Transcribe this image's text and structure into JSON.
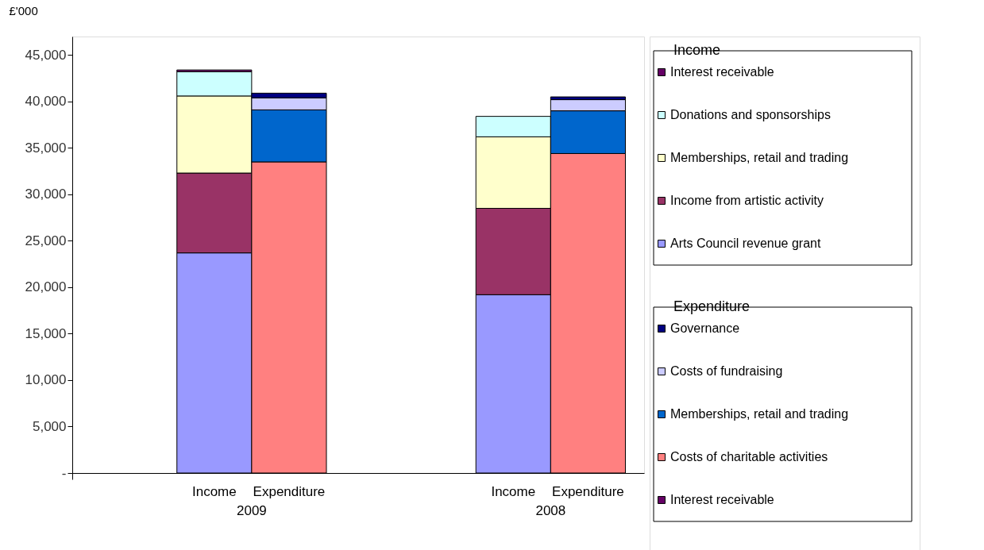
{
  "chart_data": {
    "type": "bar",
    "stacked": true,
    "ylabel": "£'000",
    "legend_title": [
      "Income",
      "Expenditure"
    ],
    "legend": "right",
    "grid": false,
    "categories": [
      null,
      "Income",
      "Expenditure",
      null,
      null,
      "Income",
      "Expenditure"
    ],
    "annotations": [
      "2009",
      "2008"
    ],
    "ylim": [
      0,
      47000
    ],
    "yticks": [
      {
        "value": 0,
        "label": "-"
      },
      {
        "value": 5000,
        "label": "5,000"
      },
      {
        "value": 10000,
        "label": "10,000"
      },
      {
        "value": 15000,
        "label": "15,000"
      },
      {
        "value": 20000,
        "label": "20,000"
      },
      {
        "value": 25000,
        "label": "25,000"
      },
      {
        "value": 30000,
        "label": "30,000"
      },
      {
        "value": 35000,
        "label": "35,000"
      },
      {
        "value": 40000,
        "label": "40,000"
      },
      {
        "value": 45000,
        "label": "45,000"
      }
    ],
    "series": [
      {
        "name": "Arts Council revenue grant",
        "color": "#9999ff",
        "values": [
          null,
          23700,
          null,
          null,
          null,
          19200,
          null
        ]
      },
      {
        "name": "Income from artistic activity",
        "color": "#993366",
        "values": [
          null,
          8600,
          null,
          null,
          null,
          9300,
          null
        ]
      },
      {
        "name": "Memberships, retail and trading",
        "color": "#ffffcc",
        "values": [
          null,
          8300,
          null,
          null,
          null,
          7700,
          null
        ]
      },
      {
        "name": "Donations and sponsorships",
        "color": "#ccffff",
        "values": [
          null,
          2600,
          null,
          null,
          null,
          2200,
          null
        ]
      },
      {
        "name": "Interest receivable",
        "color": "#660066",
        "values": [
          null,
          200,
          null,
          null,
          null,
          null,
          null
        ]
      },
      {
        "name": "Interest receivable",
        "color": "#660066",
        "values": [
          null,
          null,
          0,
          null,
          null,
          null,
          0
        ]
      },
      {
        "name": "Costs of charitable activities",
        "color": "#ff8080",
        "values": [
          null,
          null,
          33500,
          null,
          null,
          null,
          34400
        ]
      },
      {
        "name": "Memberships, retail and trading",
        "color": "#0066cc",
        "values": [
          null,
          null,
          5600,
          null,
          null,
          null,
          4600
        ]
      },
      {
        "name": "Costs of fundraising",
        "color": "#ccccff",
        "values": [
          null,
          null,
          1300,
          null,
          null,
          null,
          1200
        ]
      },
      {
        "name": "Governance",
        "color": "#000080",
        "values": [
          null,
          null,
          500,
          null,
          null,
          null,
          300
        ]
      }
    ]
  }
}
